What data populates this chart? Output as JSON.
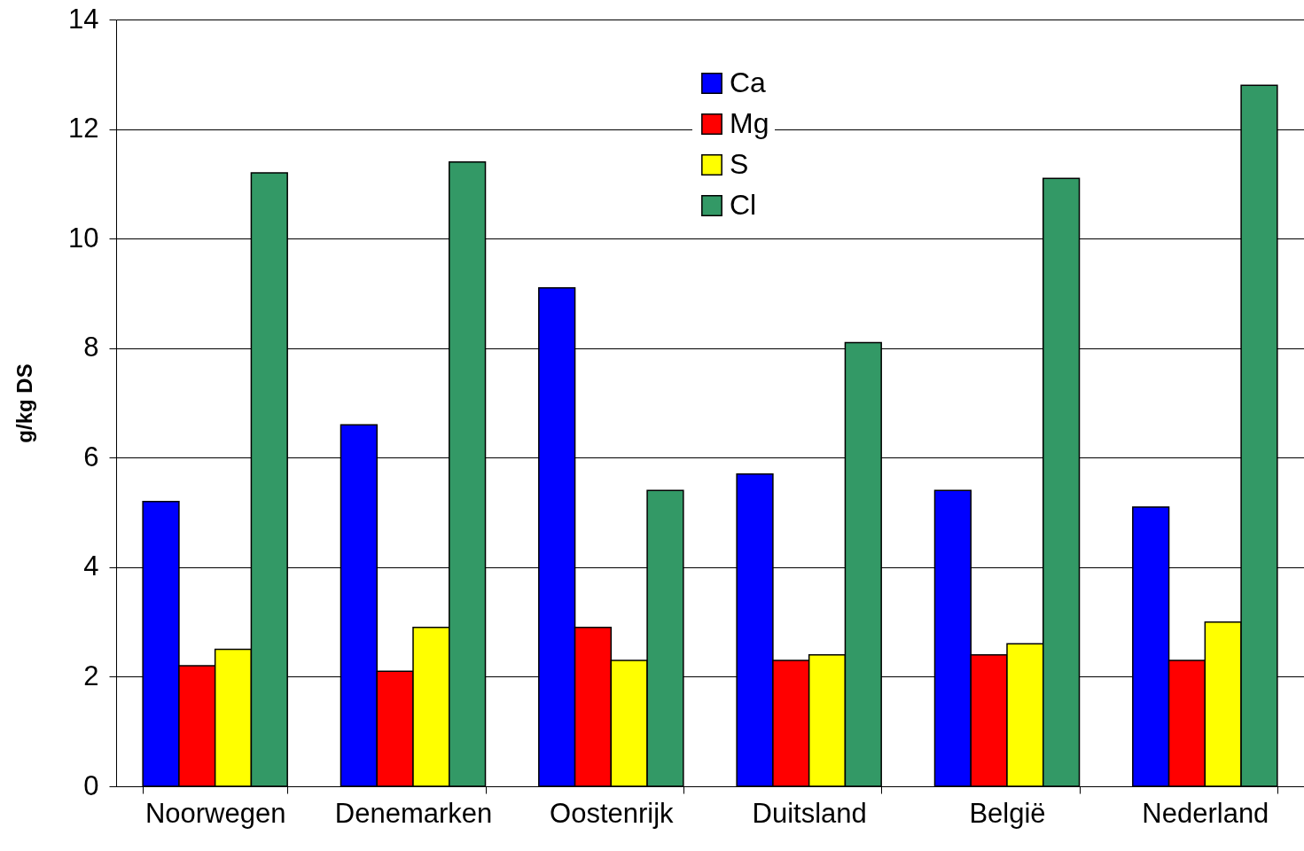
{
  "chart_data": {
    "type": "bar",
    "ylabel": "g/kg DS",
    "categories": [
      "Noorwegen",
      "Denemarken",
      "Oostenrijk",
      "Duitsland",
      "België",
      "Nederland"
    ],
    "series": [
      {
        "name": "Ca",
        "color": "#0000ff",
        "values": [
          5.2,
          6.6,
          9.1,
          5.7,
          5.4,
          5.1
        ]
      },
      {
        "name": "Mg",
        "color": "#ff0000",
        "values": [
          2.2,
          2.1,
          2.9,
          2.3,
          2.4,
          2.3
        ]
      },
      {
        "name": "S",
        "color": "#ffff00",
        "values": [
          2.5,
          2.9,
          2.3,
          2.4,
          2.6,
          3.0
        ]
      },
      {
        "name": "Cl",
        "color": "#339966",
        "values": [
          11.2,
          11.4,
          5.4,
          8.1,
          11.1,
          12.8
        ]
      }
    ],
    "ylim": [
      0,
      14
    ],
    "yticks": [
      0,
      2,
      4,
      6,
      8,
      10,
      12,
      14
    ],
    "grid": "y",
    "legend": "top"
  }
}
